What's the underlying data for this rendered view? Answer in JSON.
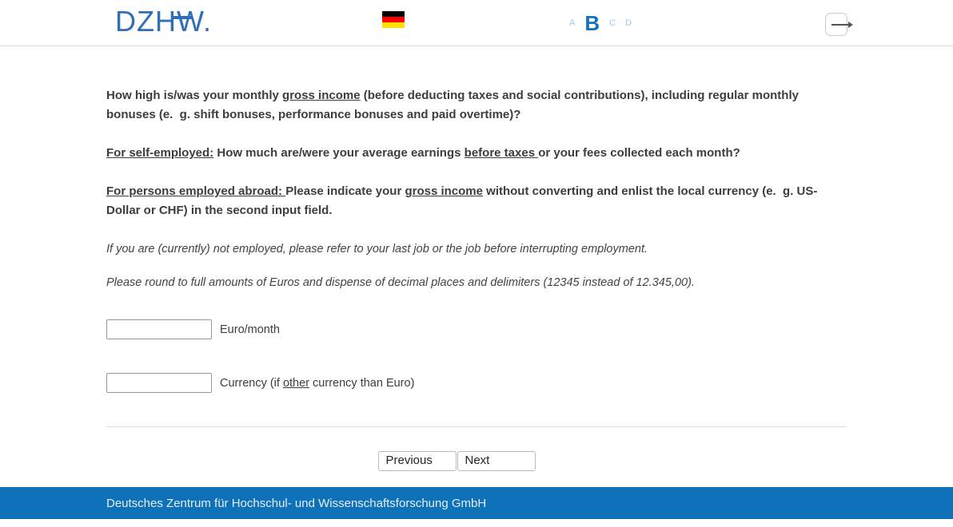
{
  "colors": {
    "logo_blue": "#2e6fb6",
    "active_section_blue": "#1671bd",
    "inactive_section_blue": "#a5c8e7",
    "footer_blue": "#0f72b8",
    "body_text": "#3d3d3d",
    "flag_black": "#000000",
    "flag_red": "#ff0000",
    "flag_gold": "#ffdf00"
  },
  "header": {
    "logo_text": "DZHW.",
    "flag_icon": "german-flag",
    "sections": [
      {
        "label": "A",
        "active": false
      },
      {
        "label": "B",
        "active": true
      },
      {
        "label": "C",
        "active": false
      },
      {
        "label": "D",
        "active": false
      }
    ],
    "logout_icon": "logout-arrow"
  },
  "question": {
    "paragraphs": [
      {
        "segments": [
          {
            "t": "How high is/was your monthly "
          },
          {
            "t": "gross income",
            "u": true
          },
          {
            "t": " (before deducting taxes and social contributions), including regular monthly bonuses (e.  g. shift bonuses, performance bonuses and paid overtime)?"
          }
        ]
      },
      {
        "segments": [
          {
            "t": "For self-employed:",
            "u": true
          },
          {
            "t": " How much are/were your average earnings "
          },
          {
            "t": "before taxes ",
            "u": true
          },
          {
            "t": "or your fees collected each month?"
          }
        ]
      },
      {
        "segments": [
          {
            "t": "For persons employed abroad: ",
            "u": true
          },
          {
            "t": "Please indicate your "
          },
          {
            "t": "gross income",
            "u": true
          },
          {
            "t": " without converting and enlist the local currency (e.  g. US-Dollar or CHF) in the second input field."
          }
        ]
      },
      {
        "segments": [
          {
            "t": "If you are (currently) not employed, please refer to your last job or the job before interrupting employment."
          }
        ]
      },
      {
        "segments": [
          {
            "t": "Please round to full amounts of Euros and dispense of decimal places and delimiters (12345 instead of 12.345,00)."
          }
        ]
      }
    ]
  },
  "inputs": [
    {
      "value": "",
      "label_segments": [
        {
          "t": "Euro/month"
        }
      ]
    },
    {
      "value": "",
      "label_segments": [
        {
          "t": "Currency (if "
        },
        {
          "t": "other",
          "u": true
        },
        {
          "t": " currency than Euro)"
        }
      ]
    }
  ],
  "nav": {
    "previous_label": "Previous",
    "next_label": "Next"
  },
  "footer": {
    "text": "Deutsches Zentrum für Hochschul- und Wissenschaftsforschung GmbH"
  }
}
